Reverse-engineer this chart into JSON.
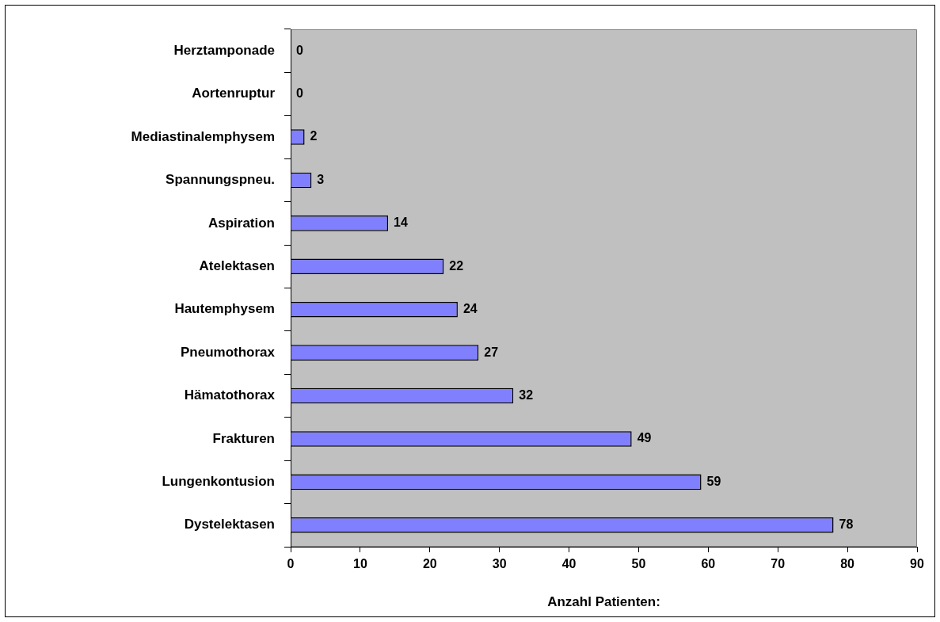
{
  "chart_data": {
    "type": "bar",
    "orientation": "horizontal",
    "categories": [
      "Herztamponade",
      "Aortenruptur",
      "Mediastinalemphysem",
      "Spannungspneu.",
      "Aspiration",
      "Atelektasen",
      "Hautemphysem",
      "Pneumothorax",
      "Hämatothorax",
      "Frakturen",
      "Lungenkontusion",
      "Dystelektasen"
    ],
    "values": [
      0,
      0,
      2,
      3,
      14,
      22,
      24,
      27,
      32,
      49,
      59,
      78
    ],
    "color": "#8080ff",
    "xlabel": "Anzahl Patienten:",
    "xlim": [
      0,
      90
    ],
    "xticks": [
      0,
      10,
      20,
      30,
      40,
      50,
      60,
      70,
      80,
      90
    ],
    "data_labels": true,
    "grid": false,
    "legend": false
  }
}
